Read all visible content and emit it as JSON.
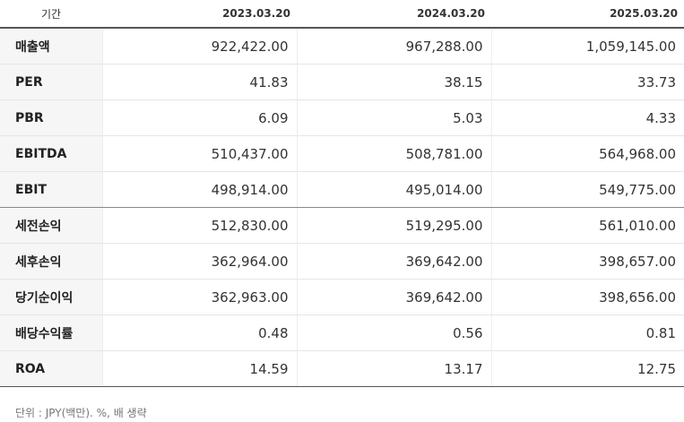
{
  "header": {
    "label": "기간",
    "periods": [
      "2023.03.20",
      "2024.03.20",
      "2025.03.20"
    ]
  },
  "rows": [
    {
      "label": "매출액",
      "values": [
        "922,422.00",
        "967,288.00",
        "1,059,145.00"
      ]
    },
    {
      "label": "PER",
      "values": [
        "41.83",
        "38.15",
        "33.73"
      ]
    },
    {
      "label": "PBR",
      "values": [
        "6.09",
        "5.03",
        "4.33"
      ]
    },
    {
      "label": "EBITDA",
      "values": [
        "510,437.00",
        "508,781.00",
        "564,968.00"
      ]
    },
    {
      "label": "EBIT",
      "values": [
        "498,914.00",
        "495,014.00",
        "549,775.00"
      ]
    },
    {
      "label": "세전손익",
      "values": [
        "512,830.00",
        "519,295.00",
        "561,010.00"
      ]
    },
    {
      "label": "세후손익",
      "values": [
        "362,964.00",
        "369,642.00",
        "398,657.00"
      ]
    },
    {
      "label": "당기순이익",
      "values": [
        "362,963.00",
        "369,642.00",
        "398,656.00"
      ]
    },
    {
      "label": "배당수익률",
      "values": [
        "0.48",
        "0.56",
        "0.81"
      ]
    },
    {
      "label": "ROA",
      "values": [
        "14.59",
        "13.17",
        "12.75"
      ]
    }
  ],
  "footnote": "단위 : JPY(백만). %, 배 생략"
}
